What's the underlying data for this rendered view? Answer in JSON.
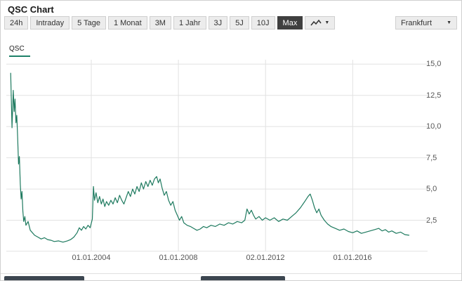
{
  "header": {
    "title": "QSC Chart"
  },
  "toolbar": {
    "range_buttons": [
      {
        "label": "24h",
        "active": false
      },
      {
        "label": "Intraday",
        "active": false
      },
      {
        "label": "5 Tage",
        "active": false
      },
      {
        "label": "1 Monat",
        "active": false
      },
      {
        "label": "3M",
        "active": false
      },
      {
        "label": "1 Jahr",
        "active": false
      },
      {
        "label": "3J",
        "active": false
      },
      {
        "label": "5J",
        "active": false
      },
      {
        "label": "10J",
        "active": false
      },
      {
        "label": "Max",
        "active": true
      }
    ],
    "chart_type_icon": "line-chart-icon",
    "exchange_selector": {
      "label": "Frankfurt"
    }
  },
  "legend": {
    "series_label": "QSC"
  },
  "colors": {
    "line": "#1e7a5f",
    "accent_underline": "#1e8168",
    "active_button_bg": "#3f3f3f",
    "grid": "#e2e2e2",
    "bottom_button_bg": "#3c4650"
  },
  "chart_data": {
    "type": "line",
    "title": "QSC Chart",
    "xlabel": "",
    "ylabel": "",
    "grid": true,
    "legend_position": "top-left",
    "xlim": [
      2000.1,
      2019.44
    ],
    "ylim": [
      0,
      15.35
    ],
    "x_ticks": [
      {
        "label": "01.01.2004",
        "year": 2004
      },
      {
        "label": "01.01.2008",
        "year": 2008
      },
      {
        "label": "02.01.2012",
        "year": 2012
      },
      {
        "label": "01.01.2016",
        "year": 2016
      }
    ],
    "y_ticks": [
      "15,0",
      "12,5",
      "10,0",
      "7,5",
      "5,0",
      "2,5"
    ],
    "y_tick_values": [
      15,
      12.5,
      10,
      7.5,
      5,
      2.5
    ],
    "series": [
      {
        "name": "QSC",
        "color": "#1e7a5f",
        "x": [
          2000.3,
          2000.36,
          2000.42,
          2000.46,
          2000.5,
          2000.54,
          2000.58,
          2000.62,
          2000.66,
          2000.7,
          2000.74,
          2000.78,
          2000.82,
          2000.86,
          2000.9,
          2000.95,
          2001.0,
          2001.1,
          2001.2,
          2001.3,
          2001.4,
          2001.55,
          2001.7,
          2001.85,
          2002.0,
          2002.15,
          2002.3,
          2002.5,
          2002.7,
          2002.9,
          2003.05,
          2003.2,
          2003.35,
          2003.45,
          2003.55,
          2003.65,
          2003.75,
          2003.85,
          2003.95,
          2004.05,
          2004.1,
          2004.15,
          2004.22,
          2004.3,
          2004.38,
          2004.46,
          2004.54,
          2004.62,
          2004.7,
          2004.8,
          2004.9,
          2005.0,
          2005.1,
          2005.2,
          2005.3,
          2005.4,
          2005.5,
          2005.6,
          2005.7,
          2005.8,
          2005.9,
          2006.0,
          2006.1,
          2006.2,
          2006.3,
          2006.4,
          2006.5,
          2006.6,
          2006.7,
          2006.8,
          2006.9,
          2007.0,
          2007.08,
          2007.16,
          2007.25,
          2007.35,
          2007.45,
          2007.55,
          2007.65,
          2007.75,
          2007.85,
          2007.95,
          2008.05,
          2008.15,
          2008.25,
          2008.4,
          2008.55,
          2008.7,
          2008.85,
          2009.0,
          2009.15,
          2009.3,
          2009.5,
          2009.7,
          2009.9,
          2010.1,
          2010.3,
          2010.5,
          2010.7,
          2010.9,
          2011.05,
          2011.15,
          2011.25,
          2011.35,
          2011.45,
          2011.55,
          2011.7,
          2011.85,
          2012.0,
          2012.2,
          2012.4,
          2012.6,
          2012.8,
          2013.0,
          2013.2,
          2013.4,
          2013.6,
          2013.8,
          2013.95,
          2014.05,
          2014.15,
          2014.25,
          2014.35,
          2014.45,
          2014.55,
          2014.7,
          2014.85,
          2015.0,
          2015.2,
          2015.4,
          2015.6,
          2015.8,
          2016.0,
          2016.2,
          2016.4,
          2016.6,
          2016.8,
          2017.0,
          2017.2,
          2017.35,
          2017.5,
          2017.65,
          2017.8,
          2018.0,
          2018.2,
          2018.4,
          2018.6
        ],
        "y": [
          14.3,
          9.9,
          12.9,
          11.2,
          12.2,
          10.3,
          10.9,
          9.2,
          7.0,
          7.6,
          5.4,
          4.2,
          4.8,
          3.2,
          2.4,
          2.8,
          2.1,
          2.4,
          1.7,
          1.5,
          1.3,
          1.15,
          1.0,
          1.1,
          0.95,
          0.9,
          0.8,
          0.85,
          0.75,
          0.85,
          0.95,
          1.15,
          1.5,
          1.9,
          1.7,
          2.0,
          1.8,
          2.1,
          1.9,
          2.6,
          5.2,
          4.1,
          4.7,
          3.9,
          4.4,
          3.8,
          4.2,
          3.6,
          4.0,
          3.7,
          4.1,
          3.8,
          4.3,
          3.9,
          4.5,
          4.1,
          3.8,
          4.3,
          4.8,
          4.4,
          5.0,
          4.6,
          5.2,
          4.8,
          5.5,
          5.0,
          5.6,
          5.2,
          5.7,
          5.3,
          5.8,
          6.0,
          5.5,
          5.8,
          5.1,
          4.5,
          4.8,
          4.1,
          3.7,
          4.0,
          3.3,
          2.9,
          2.5,
          2.8,
          2.3,
          2.1,
          2.0,
          1.85,
          1.7,
          1.8,
          2.0,
          1.9,
          2.1,
          2.0,
          2.2,
          2.1,
          2.3,
          2.2,
          2.4,
          2.3,
          2.5,
          3.4,
          3.0,
          3.3,
          2.9,
          2.6,
          2.8,
          2.5,
          2.7,
          2.5,
          2.7,
          2.4,
          2.6,
          2.5,
          2.8,
          3.1,
          3.5,
          4.0,
          4.4,
          4.6,
          4.1,
          3.5,
          3.1,
          3.4,
          2.9,
          2.5,
          2.2,
          2.0,
          1.85,
          1.7,
          1.8,
          1.6,
          1.5,
          1.65,
          1.45,
          1.55,
          1.65,
          1.75,
          1.85,
          1.65,
          1.75,
          1.55,
          1.65,
          1.45,
          1.55,
          1.35,
          1.3
        ]
      }
    ]
  }
}
